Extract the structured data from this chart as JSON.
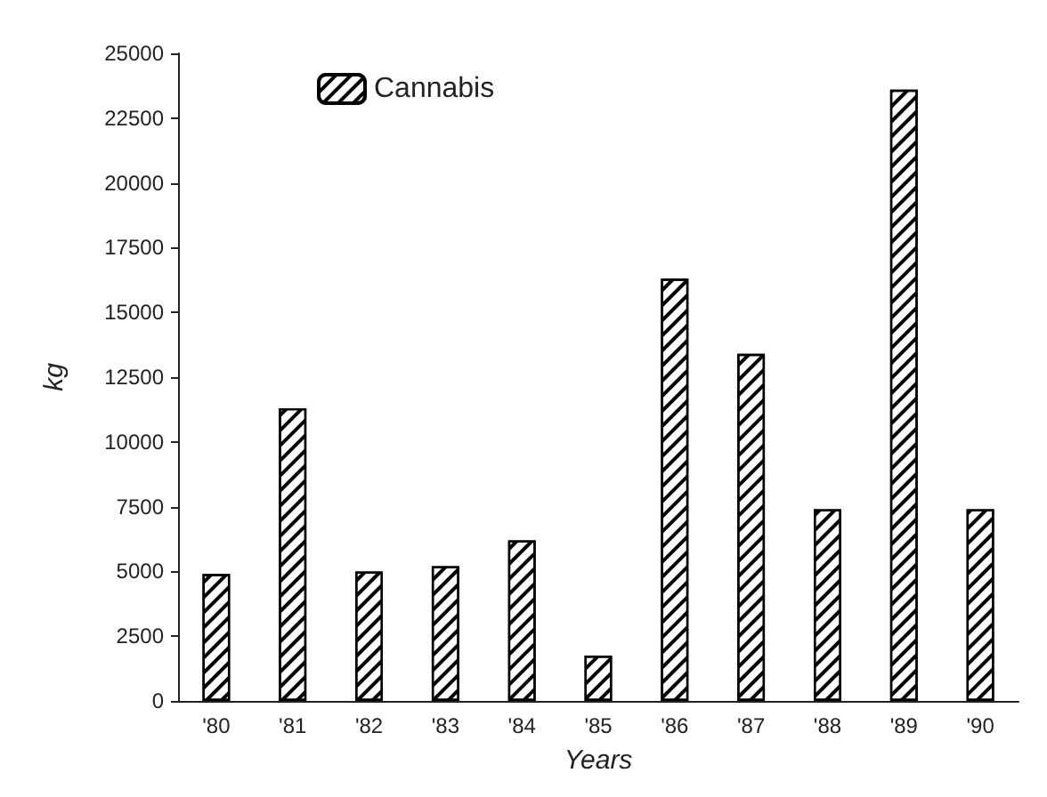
{
  "chart_data": {
    "type": "bar",
    "xlabel": "Years",
    "ylabel": "kg",
    "categories": [
      "'80",
      "'81",
      "'82",
      "'83",
      "'84",
      "'85",
      "'86",
      "'87",
      "'88",
      "'89",
      "'90"
    ],
    "series": [
      {
        "name": "Cannabis",
        "color": "#ffffff",
        "values": [
          4900,
          11300,
          5000,
          5200,
          6200,
          1750,
          16300,
          13400,
          7400,
          23600,
          7400
        ]
      }
    ],
    "ylim": [
      0,
      25000
    ],
    "yticks": [
      0,
      2500,
      5000,
      7500,
      10000,
      12500,
      15000,
      17500,
      20000,
      22500,
      25000
    ],
    "grid": false,
    "legend": "top left"
  }
}
